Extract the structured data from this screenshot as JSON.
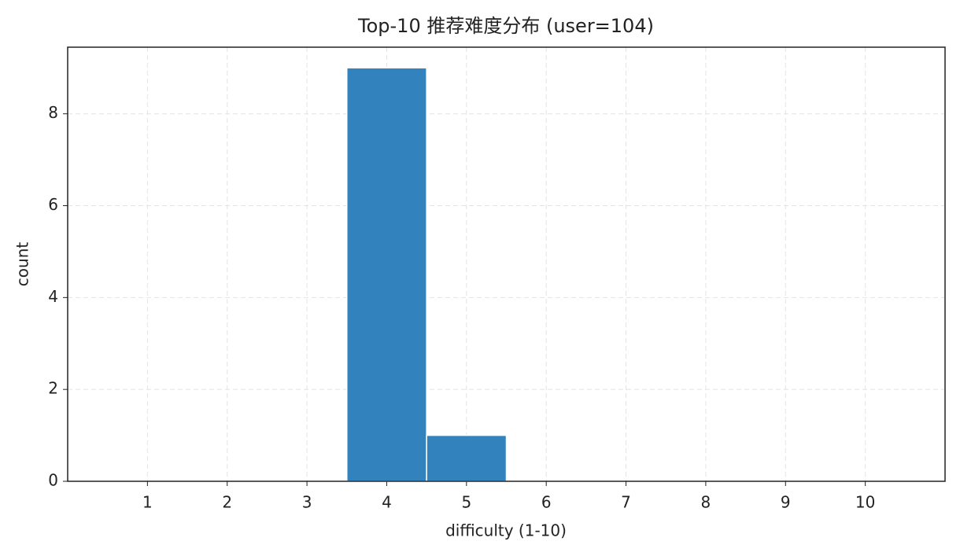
{
  "chart_data": {
    "type": "histogram",
    "title": "Top-10 推荐难度分布 (user=104)",
    "x_label": "difficulty (1-10)",
    "y_label": "count",
    "bins": [
      0.5,
      1.5,
      2.5,
      3.5,
      4.5,
      5.5,
      6.5,
      7.5,
      8.5,
      9.5,
      10.5
    ],
    "counts": [
      0,
      0,
      0,
      9,
      1,
      0,
      0,
      0,
      0,
      0
    ],
    "color": "#3182bd",
    "xlim": [
      0,
      11
    ],
    "xticks": [
      1,
      2,
      3,
      4,
      5,
      6,
      7,
      8,
      9,
      10
    ],
    "ylim": [
      0,
      9.45
    ],
    "yticks": [
      0,
      2,
      4,
      6,
      8
    ],
    "grid": true
  }
}
